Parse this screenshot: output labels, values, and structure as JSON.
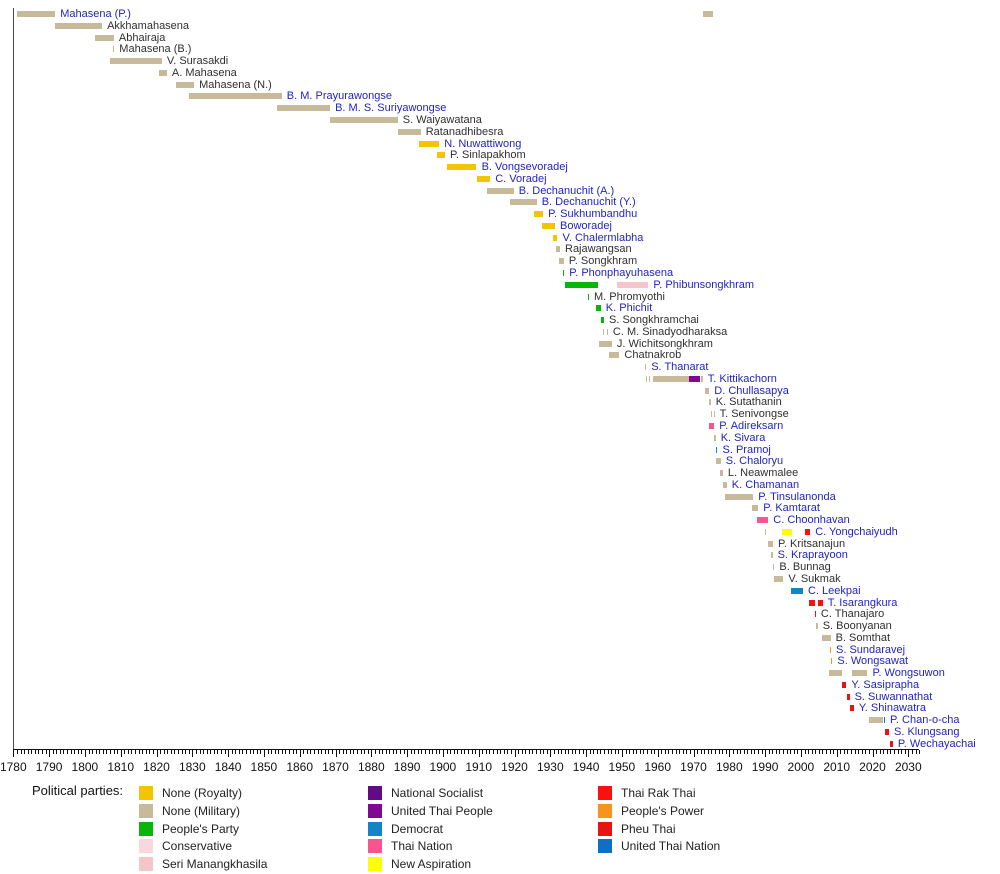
{
  "chart_data": {
    "type": "timeline",
    "title": "",
    "axis": {
      "start": 1780,
      "end": 2033,
      "major_interval": 10,
      "minor_interval": 1,
      "tick_labels": [
        "1780",
        "1790",
        "1800",
        "1810",
        "1820",
        "1830",
        "1840",
        "1850",
        "1860",
        "1870",
        "1880",
        "1890",
        "1900",
        "1910",
        "1920",
        "1930",
        "1940",
        "1950",
        "1960",
        "1970",
        "1980",
        "1990",
        "2000",
        "2010",
        "2020",
        "2030"
      ]
    },
    "parties": {
      "none_royalty": {
        "label": "None (Royalty)",
        "color": "#f2c500"
      },
      "none_military": {
        "label": "None (Military)",
        "color": "#c6ba9b"
      },
      "peoples_party": {
        "label": "People's Party",
        "color": "#0ab50a"
      },
      "conservative": {
        "label": "Conservative",
        "color": "#f9d8dd"
      },
      "seri_manangkhasila": {
        "label": "Seri Manangkhasila",
        "color": "#f4c6cc"
      },
      "national_socialist": {
        "label": "National Socialist",
        "color": "#650a87"
      },
      "united_thai_people": {
        "label": "United Thai People",
        "color": "#7e0a91"
      },
      "democrat": {
        "label": "Democrat",
        "color": "#1583c7"
      },
      "thai_nation": {
        "label": "Thai Nation",
        "color": "#f85490"
      },
      "new_aspiration": {
        "label": "New Aspiration",
        "color": "#ffff00"
      },
      "thai_rak_thai": {
        "label": "Thai Rak Thai",
        "color": "#fb0f0f"
      },
      "peoples_power": {
        "label": "People's Power",
        "color": "#f7941d"
      },
      "pheu_thai": {
        "label": "Pheu Thai",
        "color": "#e81313"
      },
      "united_thai_nation": {
        "label": "United Thai Nation",
        "color": "#0f6fc5"
      }
    },
    "text_colors": {
      "link": "#2324bd",
      "plain": "#2f2f2f"
    },
    "ministers": [
      {
        "name": "Mahasena (P.)",
        "link": true,
        "segments": [
          {
            "start": 1780.9,
            "end": 1791.7,
            "party": "none_military"
          }
        ]
      },
      {
        "name": "Akkhamahasena",
        "link": false,
        "segments": [
          {
            "start": 1791.7,
            "end": 1804.8,
            "party": "none_military"
          }
        ]
      },
      {
        "name": "Abhairaja",
        "link": false,
        "segments": [
          {
            "start": 1802.8,
            "end": 1808.1,
            "party": "none_military"
          }
        ]
      },
      {
        "name": "Mahasena (B.)",
        "link": false,
        "segments": [
          {
            "start": 1807.8,
            "end": 1808.2,
            "party": "none_military"
          }
        ]
      },
      {
        "name": "V. Surasakdi",
        "link": false,
        "segments": [
          {
            "start": 1807.0,
            "end": 1821.5,
            "party": "none_military"
          }
        ]
      },
      {
        "name": "A. Mahasena",
        "link": false,
        "segments": [
          {
            "start": 1820.7,
            "end": 1822.9,
            "party": "none_military"
          }
        ]
      },
      {
        "name": "Mahasena (N.)",
        "link": false,
        "segments": [
          {
            "start": 1825.4,
            "end": 1830.5,
            "party": "none_military"
          }
        ]
      },
      {
        "name": "B. M. Prayurawongse",
        "link": true,
        "segments": [
          {
            "start": 1829.2,
            "end": 1855.0,
            "party": "none_military"
          }
        ]
      },
      {
        "name": "B. M. S. Suriyawongse",
        "link": true,
        "segments": [
          {
            "start": 1853.6,
            "end": 1868.5,
            "party": "none_military"
          }
        ]
      },
      {
        "name": "S. Waiyawatana",
        "link": false,
        "segments": [
          {
            "start": 1868.5,
            "end": 1887.4,
            "party": "none_military"
          }
        ]
      },
      {
        "name": "Ratanadhibesra",
        "link": false,
        "segments": [
          {
            "start": 1887.4,
            "end": 1893.8,
            "party": "none_military"
          }
        ]
      },
      {
        "name": "N. Nuwattiwong",
        "link": true,
        "segments": [
          {
            "start": 1893.3,
            "end": 1899.0,
            "party": "none_royalty"
          }
        ]
      },
      {
        "name": "P. Sinlapakhom",
        "link": false,
        "segments": [
          {
            "start": 1898.3,
            "end": 1900.6,
            "party": "none_royalty"
          }
        ]
      },
      {
        "name": "B. Vongsevoradej",
        "link": true,
        "segments": [
          {
            "start": 1901.1,
            "end": 1909.4,
            "party": "none_royalty"
          }
        ]
      },
      {
        "name": "C. Voradej",
        "link": true,
        "segments": [
          {
            "start": 1909.4,
            "end": 1913.2,
            "party": "none_royalty"
          }
        ]
      },
      {
        "name": "B. Dechanuchit (A.)",
        "link": true,
        "segments": [
          {
            "start": 1912.2,
            "end": 1919.8,
            "party": "none_military"
          }
        ]
      },
      {
        "name": "B. Dechanuchit (Y.)",
        "link": true,
        "segments": [
          {
            "start": 1918.7,
            "end": 1926.2,
            "party": "none_military"
          }
        ]
      },
      {
        "name": "P. Sukhumbandhu",
        "link": true,
        "segments": [
          {
            "start": 1925.3,
            "end": 1928.0,
            "party": "none_royalty"
          }
        ]
      },
      {
        "name": "Boworadej",
        "link": true,
        "segments": [
          {
            "start": 1927.6,
            "end": 1931.3,
            "party": "none_royalty"
          }
        ]
      },
      {
        "name": "V. Chalermlabha",
        "link": true,
        "segments": [
          {
            "start": 1930.8,
            "end": 1932.0,
            "party": "none_royalty"
          }
        ]
      },
      {
        "name": "Rajawangsan",
        "link": false,
        "segments": [
          {
            "start": 1931.6,
            "end": 1932.7,
            "party": "none_military"
          }
        ]
      },
      {
        "name": "P. Songkhram",
        "link": false,
        "segments": [
          {
            "start": 1932.5,
            "end": 1933.8,
            "party": "none_military"
          }
        ]
      },
      {
        "name": "P. Phonphayuhasena",
        "link": true,
        "segments": [
          {
            "start": 1933.4,
            "end": 1933.9,
            "party": "peoples_party"
          }
        ]
      },
      {
        "name": "P. Phibunsongkhram",
        "link": true,
        "segments": [
          {
            "start": 1934.1,
            "end": 1943.4,
            "party": "peoples_party"
          },
          {
            "start": 1948.5,
            "end": 1957.4,
            "party": "seri_manangkhasila"
          }
        ]
      },
      {
        "name": "M. Phromyothi",
        "link": false,
        "segments": [
          {
            "start": 1940.4,
            "end": 1940.8,
            "party": "peoples_party"
          }
        ]
      },
      {
        "name": "K. Phichit",
        "link": true,
        "segments": [
          {
            "start": 1942.8,
            "end": 1944.1,
            "party": "peoples_party"
          }
        ]
      },
      {
        "name": "S. Songkhramchai",
        "link": false,
        "segments": [
          {
            "start": 1944.1,
            "end": 1945.0,
            "party": "peoples_party"
          }
        ]
      },
      {
        "name": "C. M. Sinadyodharaksa",
        "link": false,
        "segments": [
          {
            "start": 1944.6,
            "end": 1944.9,
            "party": "none_military"
          },
          {
            "start": 1945.8,
            "end": 1946.1,
            "party": "none_military"
          }
        ]
      },
      {
        "name": "J. Wichitsongkhram",
        "link": false,
        "segments": [
          {
            "start": 1943.7,
            "end": 1947.2,
            "party": "none_military"
          }
        ]
      },
      {
        "name": "Chatnakrob",
        "link": false,
        "segments": [
          {
            "start": 1946.5,
            "end": 1949.3,
            "party": "none_military"
          }
        ]
      },
      {
        "name": "S. Thanarat",
        "link": true,
        "segments": [
          {
            "start": 1956.3,
            "end": 1956.8,
            "party": "none_military"
          }
        ]
      },
      {
        "name": "T. Kittikachorn",
        "link": true,
        "segments": [
          {
            "start": 1956.7,
            "end": 1957.1,
            "party": "none_military"
          },
          {
            "start": 1957.6,
            "end": 1958.0,
            "party": "none_military"
          },
          {
            "start": 1958.6,
            "end": 1968.8,
            "party": "none_military"
          },
          {
            "start": 1968.8,
            "end": 1971.8,
            "party": "united_thai_people"
          },
          {
            "start": 1972.0,
            "end": 1972.6,
            "party": "none_military"
          }
        ]
      },
      {
        "name": "D. Chullasapya",
        "link": true,
        "segments": [
          {
            "start": 1973.2,
            "end": 1974.4,
            "party": "none_military"
          }
        ]
      },
      {
        "name": "K. Sutathanin",
        "link": false,
        "segments": [
          {
            "start": 1974.2,
            "end": 1974.8,
            "party": "none_military"
          }
        ]
      },
      {
        "name": "T. Senivongse",
        "link": false,
        "segments": [
          {
            "start": 1974.9,
            "end": 1975.2,
            "party": "none_military"
          },
          {
            "start": 1975.6,
            "end": 1975.9,
            "party": "none_military"
          }
        ]
      },
      {
        "name": "P. Adireksarn",
        "link": true,
        "segments": [
          {
            "start": 1974.4,
            "end": 1975.8,
            "party": "thai_nation"
          }
        ]
      },
      {
        "name": "K. Sivara",
        "link": true,
        "segments": [
          {
            "start": 1975.8,
            "end": 1976.2,
            "party": "none_military"
          }
        ]
      },
      {
        "name": "S. Pramoj",
        "link": true,
        "segments": [
          {
            "start": 1976.3,
            "end": 1976.7,
            "party": "democrat"
          }
        ]
      },
      {
        "name": "S. Chaloryu",
        "link": true,
        "segments": [
          {
            "start": 1976.3,
            "end": 1977.6,
            "party": "none_military"
          }
        ]
      },
      {
        "name": "L. Neawmalee",
        "link": false,
        "segments": [
          {
            "start": 1977.4,
            "end": 1978.2,
            "party": "none_military"
          }
        ]
      },
      {
        "name": "K. Chamanan",
        "link": true,
        "segments": [
          {
            "start": 1978.1,
            "end": 1979.3,
            "party": "none_military"
          }
        ]
      },
      {
        "name": "P. Tinsulanonda",
        "link": true,
        "segments": [
          {
            "start": 1978.8,
            "end": 1986.7,
            "party": "none_military"
          }
        ]
      },
      {
        "name": "P. Kamtarat",
        "link": true,
        "segments": [
          {
            "start": 1986.2,
            "end": 1988.1,
            "party": "none_military"
          }
        ]
      },
      {
        "name": "C. Choonhavan",
        "link": true,
        "segments": [
          {
            "start": 1987.8,
            "end": 1990.9,
            "party": "thai_nation"
          }
        ]
      },
      {
        "name": "C. Yongchaiyudh",
        "link": true,
        "segments": [
          {
            "start": 1990.0,
            "end": 1990.4,
            "party": "none_military"
          },
          {
            "start": 1994.6,
            "end": 1997.4,
            "party": "new_aspiration"
          },
          {
            "start": 2001.2,
            "end": 2002.6,
            "party": "thai_rak_thai"
          }
        ]
      },
      {
        "name": "P. Kritsanajun",
        "link": false,
        "segments": [
          {
            "start": 1990.9,
            "end": 1992.2,
            "party": "none_military"
          }
        ]
      },
      {
        "name": "S. Kraprayoon",
        "link": true,
        "segments": [
          {
            "start": 1991.7,
            "end": 1992.1,
            "party": "none_military"
          }
        ]
      },
      {
        "name": "B. Bunnag",
        "link": false,
        "segments": [
          {
            "start": 1992.2,
            "end": 1992.6,
            "party": "none_military"
          }
        ]
      },
      {
        "name": "V. Sukmak",
        "link": false,
        "segments": [
          {
            "start": 1992.5,
            "end": 1995.1,
            "party": "none_military"
          }
        ]
      },
      {
        "name": "C. Leekpai",
        "link": true,
        "segments": [
          {
            "start": 1997.1,
            "end": 2000.6,
            "party": "democrat"
          }
        ]
      },
      {
        "name": "T. Isarangkura",
        "link": true,
        "segments": [
          {
            "start": 2002.3,
            "end": 2004.1,
            "party": "thai_rak_thai"
          },
          {
            "start": 2004.7,
            "end": 2006.1,
            "party": "thai_rak_thai"
          }
        ]
      },
      {
        "name": "C. Thanajaro",
        "link": false,
        "segments": [
          {
            "start": 2003.8,
            "end": 2004.2,
            "party": "thai_rak_thai"
          }
        ]
      },
      {
        "name": "S. Boonyanan",
        "link": false,
        "segments": [
          {
            "start": 2004.3,
            "end": 2004.7,
            "party": "none_military"
          }
        ]
      },
      {
        "name": "B. Somthat",
        "link": false,
        "segments": [
          {
            "start": 2005.9,
            "end": 2008.3,
            "party": "none_military"
          }
        ]
      },
      {
        "name": "S. Sundaravej",
        "link": true,
        "segments": [
          {
            "start": 2008.0,
            "end": 2008.4,
            "party": "peoples_power"
          }
        ]
      },
      {
        "name": "S. Wongsawat",
        "link": true,
        "segments": [
          {
            "start": 2008.4,
            "end": 2008.8,
            "party": "peoples_power"
          }
        ]
      },
      {
        "name": "P. Wongsuwon",
        "link": true,
        "segments": [
          {
            "start": 2007.7,
            "end": 2011.4,
            "party": "none_military"
          },
          {
            "start": 2014.3,
            "end": 2018.6,
            "party": "none_military"
          }
        ]
      },
      {
        "name": "Y. Sasiprapha",
        "link": true,
        "segments": [
          {
            "start": 2011.5,
            "end": 2012.7,
            "party": "pheu_thai"
          }
        ]
      },
      {
        "name": "S. Suwannathat",
        "link": true,
        "segments": [
          {
            "start": 2012.9,
            "end": 2013.6,
            "party": "pheu_thai"
          }
        ]
      },
      {
        "name": "Y. Shinawatra",
        "link": true,
        "segments": [
          {
            "start": 2013.8,
            "end": 2014.8,
            "party": "pheu_thai"
          }
        ]
      },
      {
        "name": "P. Chan-o-cha",
        "link": true,
        "segments": [
          {
            "start": 2019.1,
            "end": 2023.0,
            "party": "none_military"
          },
          {
            "start": 2023.1,
            "end": 2023.5,
            "party": "united_thai_nation"
          }
        ]
      },
      {
        "name": "S. Klungsang",
        "link": true,
        "segments": [
          {
            "start": 2023.5,
            "end": 2024.6,
            "party": "pheu_thai"
          }
        ]
      },
      {
        "name": "P. Wechayachai",
        "link": true,
        "segments": [
          {
            "start": 2024.9,
            "end": 2025.7,
            "party": "pheu_thai"
          }
        ]
      }
    ],
    "stray_segment": {
      "row": 1,
      "start": 1972.7,
      "end": 1975.4,
      "party": "none_military"
    },
    "legend": {
      "heading": "Political parties:",
      "columns": [
        [
          "none_royalty",
          "none_military",
          "peoples_party",
          "conservative",
          "seri_manangkhasila"
        ],
        [
          "national_socialist",
          "united_thai_people",
          "democrat",
          "thai_nation",
          "new_aspiration"
        ],
        [
          "thai_rak_thai",
          "peoples_power",
          "pheu_thai",
          "united_thai_nation"
        ]
      ]
    }
  }
}
